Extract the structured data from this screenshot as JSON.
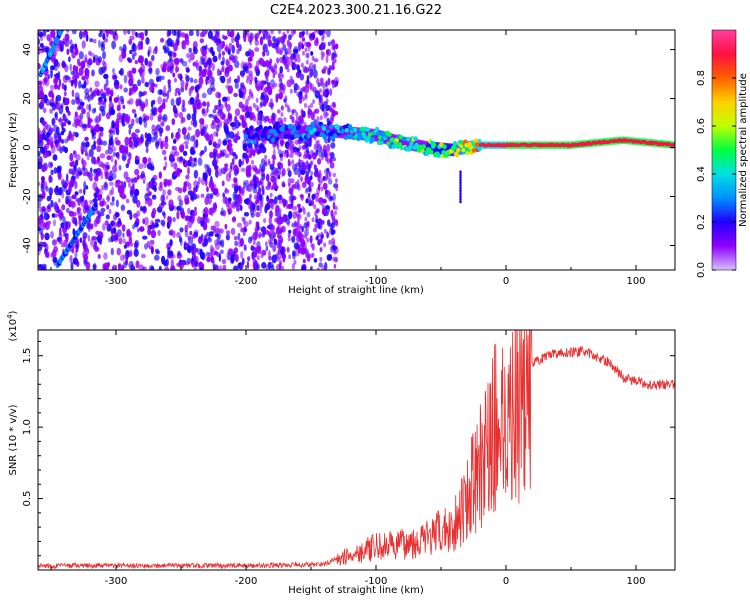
{
  "figure": {
    "title": "C2E4.2023.300.21.16.G22"
  },
  "chart_data": [
    {
      "type": "heatmap",
      "name": "spectrogram",
      "xlabel": "Height of straight line (km)",
      "ylabel": "Frequency (Hz)",
      "xlim": [
        -360,
        130
      ],
      "ylim": [
        -50,
        48
      ],
      "xticks": [
        -300,
        -200,
        -100,
        0,
        100
      ],
      "xtick_labels": [
        "-300",
        "-200",
        "-100",
        "0",
        "100"
      ],
      "yticks": [
        -40,
        -20,
        0,
        20,
        40
      ],
      "ytick_labels": [
        "-40",
        "-20",
        "0",
        "20",
        "40"
      ],
      "colorbar": {
        "label": "Normalized spectral amplitude",
        "range": [
          0,
          1
        ],
        "ticks": [
          0.0,
          0.2,
          0.4,
          0.6,
          0.8
        ],
        "tick_labels": [
          "0.0",
          "0.2",
          "0.4",
          "0.6",
          "0.8"
        ],
        "colormap": [
          "#d8c0ff",
          "#9000ff",
          "#2000ff",
          "#0090ff",
          "#00e0e0",
          "#00ff40",
          "#c0ff00",
          "#ffd000",
          "#ff6000",
          "#ff1040",
          "#ff40a0"
        ]
      },
      "noise_region_x": [
        -360,
        -130
      ],
      "signal_track": [
        {
          "x": -200,
          "y": 5,
          "amp": 0.25
        },
        {
          "x": -170,
          "y": 6,
          "amp": 0.3
        },
        {
          "x": -140,
          "y": 7,
          "amp": 0.35
        },
        {
          "x": -120,
          "y": 6,
          "amp": 0.4
        },
        {
          "x": -100,
          "y": 5,
          "amp": 0.5
        },
        {
          "x": -80,
          "y": 2,
          "amp": 0.55
        },
        {
          "x": -60,
          "y": 0,
          "amp": 0.6
        },
        {
          "x": -40,
          "y": -1,
          "amp": 0.7
        },
        {
          "x": -20,
          "y": 1,
          "amp": 0.85
        },
        {
          "x": 0,
          "y": 1,
          "amp": 0.9
        },
        {
          "x": 50,
          "y": 1,
          "amp": 0.9
        },
        {
          "x": 90,
          "y": 3,
          "amp": 0.92
        },
        {
          "x": 130,
          "y": 1,
          "amp": 0.9
        }
      ]
    },
    {
      "type": "line",
      "name": "snr",
      "xlabel": "Height of straight line (km)",
      "ylabel": "SNR (10 * v/v)",
      "y_multiplier_label": "(x10",
      "y_multiplier_exp": "4",
      "y_multiplier_close": ")",
      "xlim": [
        -360,
        130
      ],
      "ylim": [
        0,
        16800
      ],
      "xticks": [
        -300,
        -200,
        -100,
        0,
        100
      ],
      "xtick_labels": [
        "-300",
        "-200",
        "-100",
        "0",
        "100"
      ],
      "yticks": [
        5000,
        10000,
        15000
      ],
      "ytick_labels": [
        "0.5",
        "1.0",
        "1.5"
      ],
      "line_color": "#e83030",
      "series": [
        {
          "name": "SNR",
          "x": [
            -360,
            -300,
            -200,
            -140,
            -120,
            -100,
            -80,
            -60,
            -40,
            -20,
            -10,
            0,
            10,
            20,
            40,
            60,
            80,
            90,
            100,
            110,
            130
          ],
          "y": [
            300,
            300,
            300,
            400,
            1200,
            1800,
            2000,
            2500,
            3500,
            8000,
            11000,
            12000,
            13500,
            14500,
            15200,
            15300,
            14500,
            13500,
            13200,
            13000,
            13000
          ]
        }
      ]
    }
  ]
}
